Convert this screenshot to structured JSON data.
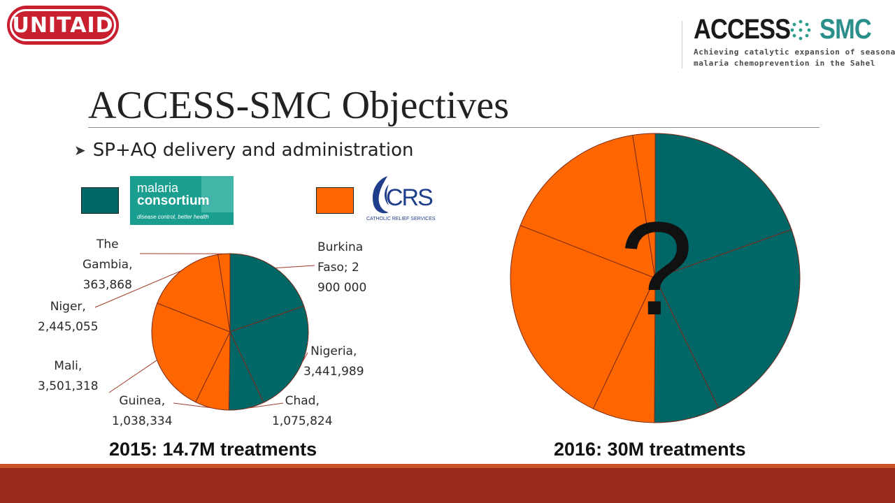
{
  "logos": {
    "unitaid": "UNITAID",
    "access_smc": {
      "word1": "ACCESS",
      "word2": "SMC",
      "tagline_line1": "Achieving catalytic expansion of seasonal",
      "tagline_line2": "malaria chemoprevention in the Sahel"
    },
    "malaria_consortium": {
      "line1": "malaria",
      "line2": "consortium",
      "tagline": "disease control, better health"
    },
    "crs": {
      "letters": "CRS",
      "tagline": "CATHOLIC RELIEF SERVICES"
    }
  },
  "slide": {
    "title": "ACCESS-SMC Objectives",
    "bullet": "SP+AQ delivery and administration"
  },
  "colors": {
    "teal": "#006666",
    "orange": "#ff6600",
    "divider": "#7a2a1a",
    "footer": "#992b1f"
  },
  "legend": [
    {
      "swatch_color": "#006666",
      "org": "malaria consortium"
    },
    {
      "swatch_color": "#ff6600",
      "org": "CRS"
    }
  ],
  "chart_data": [
    {
      "type": "pie",
      "title": "2015: 14.7M treatments",
      "slices": [
        {
          "label": "Burkina Faso; 2 900 000",
          "label_lines": [
            "Burkina",
            "Faso; 2",
            "900 000"
          ],
          "value": 2900000,
          "color": "#006666"
        },
        {
          "label": "Nigeria, 3,441,989",
          "label_lines": [
            "Nigeria,",
            "3,441,989"
          ],
          "value": 3441989,
          "color": "#006666"
        },
        {
          "label": "Chad, 1,075,824",
          "label_lines": [
            "Chad,",
            "1,075,824"
          ],
          "value": 1075824,
          "color": "#006666"
        },
        {
          "label": "Guinea, 1,038,334",
          "label_lines": [
            "Guinea,",
            "1,038,334"
          ],
          "value": 1038334,
          "color": "#ff6600"
        },
        {
          "label": "Mali, 3,501,318",
          "label_lines": [
            "Mali,",
            "3,501,318"
          ],
          "value": 3501318,
          "color": "#ff6600"
        },
        {
          "label": "Niger, 2,445,055",
          "label_lines": [
            "Niger,",
            "2,445,055"
          ],
          "value": 2445055,
          "color": "#ff6600"
        },
        {
          "label": "The Gambia, 363,868",
          "label_lines": [
            "The",
            "Gambia,",
            "363,868"
          ],
          "value": 363868,
          "color": "#ff6600"
        }
      ]
    },
    {
      "type": "pie",
      "title": "2016: 30M treatments",
      "annotation": "?",
      "note": "Slices unlabeled; proportions approximate",
      "slices": [
        {
          "value": 5.9,
          "color": "#006666"
        },
        {
          "value": 7.0,
          "color": "#006666"
        },
        {
          "value": 2.2,
          "color": "#006666"
        },
        {
          "value": 2.1,
          "color": "#ff6600"
        },
        {
          "value": 7.2,
          "color": "#ff6600"
        },
        {
          "value": 5.0,
          "color": "#ff6600"
        },
        {
          "value": 0.75,
          "color": "#ff6600"
        }
      ]
    }
  ]
}
